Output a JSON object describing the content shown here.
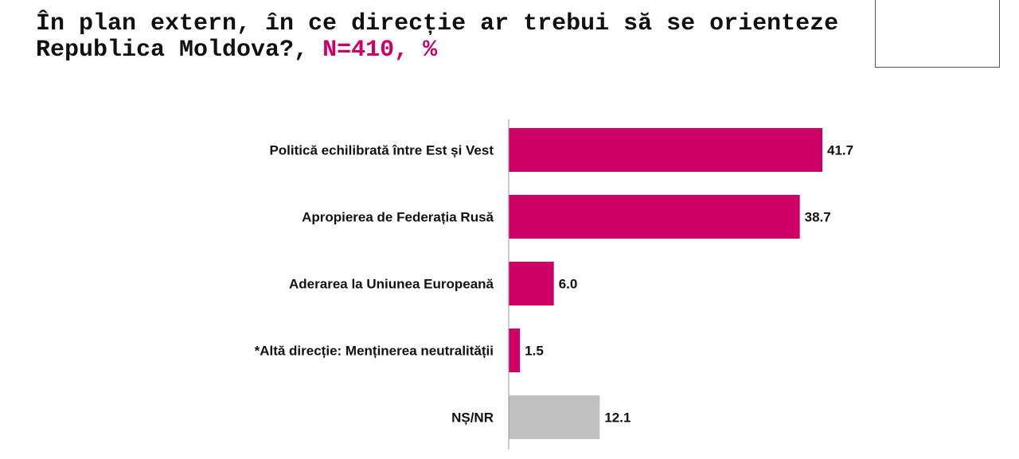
{
  "title": {
    "main": "În plan extern, în ce direcție ar trebui să se orienteze\nRepublica Moldova?, ",
    "highlight": "N=410, %"
  },
  "colors": {
    "accent": "#cc0066",
    "neutral": "#c0c0c0"
  },
  "chart_data": {
    "type": "bar",
    "orientation": "horizontal",
    "title": "În plan extern, în ce direcție ar trebui să se orienteze Republica Moldova?, N=410, %",
    "categories": [
      "Politică echilibrată între Est și Vest",
      "Apropierea de Federația Rusă",
      "Aderarea la Uniunea Europeană",
      "*Altă direcție: Menținerea neutralității",
      "NȘ/NR"
    ],
    "values": [
      41.7,
      38.7,
      6.0,
      1.5,
      12.1
    ],
    "value_labels": [
      "41.7",
      "38.7",
      "6.0",
      "1.5",
      "12.1"
    ],
    "bar_colors": [
      "#cc0066",
      "#cc0066",
      "#cc0066",
      "#cc0066",
      "#c0c0c0"
    ],
    "xlim": [
      0,
      67
    ],
    "grid": false,
    "legend": "none"
  }
}
